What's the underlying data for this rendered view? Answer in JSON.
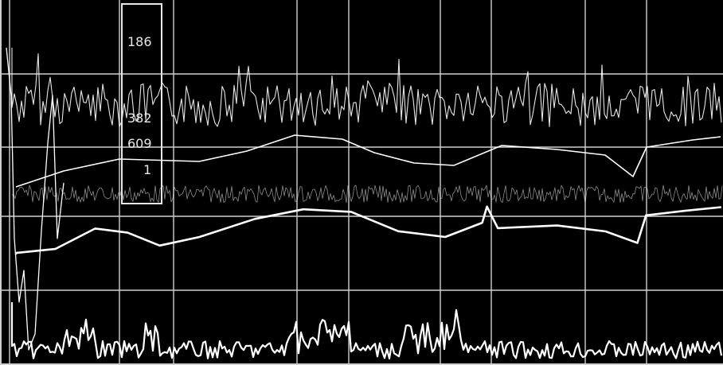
{
  "chart_data": {
    "type": "line",
    "title": "",
    "xlabel": "",
    "ylabel": "",
    "grid": true,
    "legend": "none",
    "readout": [
      "186",
      "382",
      "609",
      "1"
    ],
    "colors": {
      "background": "#000000",
      "trace": "#ffffff",
      "grid": "#cfcfcf",
      "cursor": "#e8e8e8"
    }
  }
}
